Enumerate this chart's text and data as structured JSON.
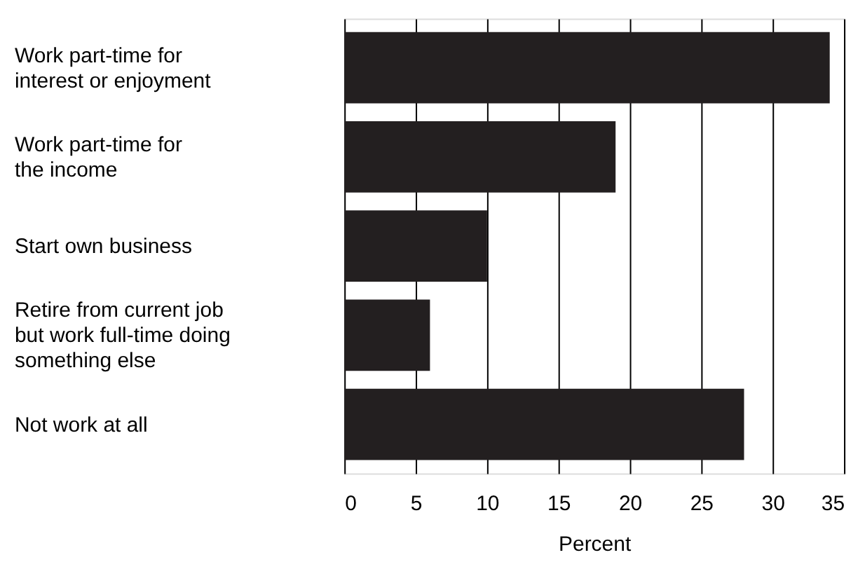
{
  "chart_data": {
    "type": "bar",
    "orientation": "horizontal",
    "xlabel": "Percent",
    "categories": [
      "Work part-time for\ninterest or enjoyment",
      "Work part-time for\nthe income",
      "Start own business",
      "Retire from current job\nbut work full-time doing\nsomething else",
      "Not work at all"
    ],
    "values": [
      34,
      19,
      10,
      6,
      28
    ],
    "color": "#231f20",
    "xlim": [
      0,
      35
    ],
    "xticks": [
      0,
      5,
      10,
      15,
      20,
      25,
      30,
      35
    ],
    "grid": "x"
  }
}
